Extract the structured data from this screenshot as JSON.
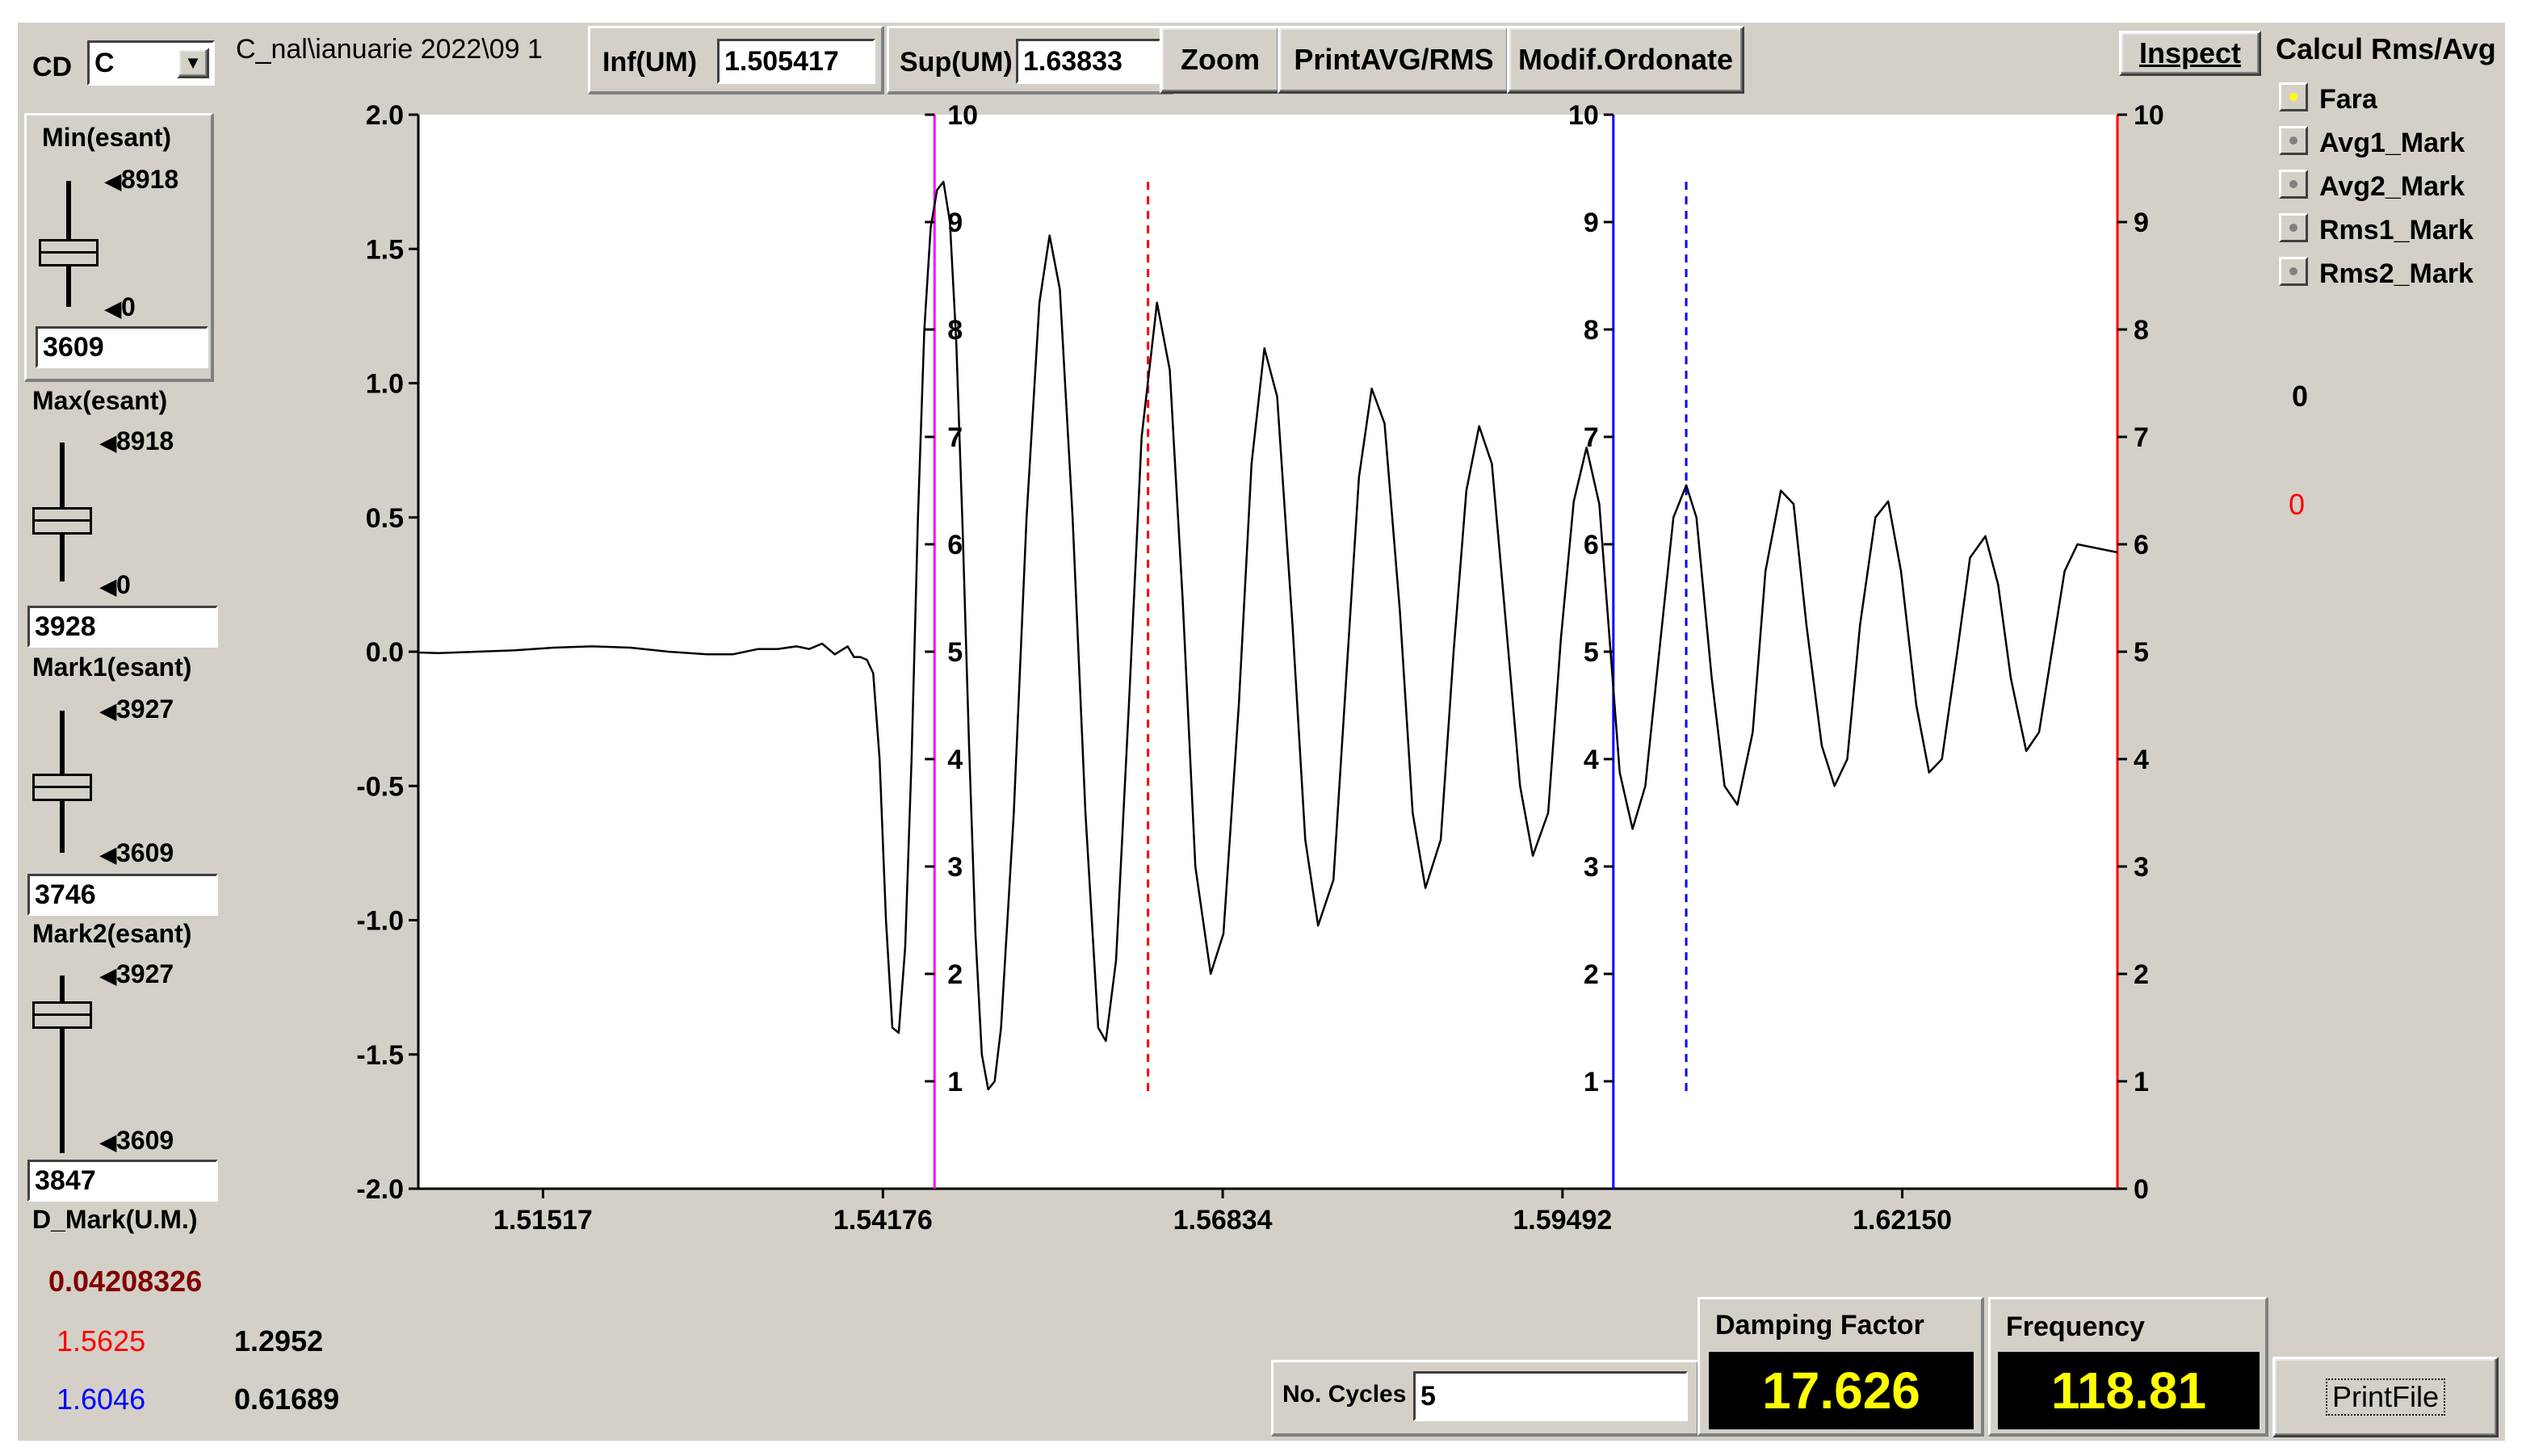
{
  "toolbar": {
    "cd_label": "CD",
    "cd_value": "C",
    "file_path": "C_nal\\ianuarie 2022\\09 1",
    "inf_label": "Inf(UM)",
    "inf_value": "1.505417",
    "sup_label": "Sup(UM)",
    "sup_value": "1.63833",
    "zoom_label": "Zoom",
    "print_avg_rms_label": "PrintAVG/RMS",
    "modif_ordonate_label": "Modif.Ordonate",
    "inspect_label": "Inspect"
  },
  "left_panel": {
    "min": {
      "label": "Min(esant)",
      "max_tick": "8918",
      "min_tick": "0",
      "value": "3609"
    },
    "max": {
      "label": "Max(esant)",
      "max_tick": "8918",
      "min_tick": "0",
      "value": "3928"
    },
    "mark1": {
      "label": "Mark1(esant)",
      "max_tick": "3927",
      "min_tick": "3609",
      "value": "3746"
    },
    "mark2": {
      "label": "Mark2(esant)",
      "max_tick": "3927",
      "min_tick": "3609",
      "value": "3847"
    },
    "d_mark_label": "D_Mark(U.M.)",
    "d_mark_value": "0.04208326",
    "mark1_x": "1.5625",
    "mark1_y": "1.2952",
    "mark2_x": "1.6046",
    "mark2_y": "0.61689"
  },
  "right_panel": {
    "title": "Calcul Rms/Avg",
    "options": [
      "Fara",
      "Avg1_Mark",
      "Avg2_Mark",
      "Rms1_Mark",
      "Rms2_Mark"
    ],
    "selected": "Fara",
    "value_black": "0",
    "value_red": "0"
  },
  "bottom": {
    "cycles_label": "No. Cycles",
    "cycles_value": "5",
    "damping_label": "Damping Factor",
    "damping_value": "17.626",
    "frequency_label": "Frequency",
    "frequency_value": "118.81",
    "printfile_label": "PrintFile"
  },
  "colors": {
    "window_bg": "#d4d0c8",
    "signal": "#000000",
    "cursor_magenta": "#ff00ff",
    "cursor_blue": "#0000ff",
    "marker_red": "#ff0000",
    "lcd_text": "#ffff00",
    "d_mark_text": "#800000"
  },
  "chart_data": {
    "type": "line",
    "title": "",
    "xlabel": "",
    "ylabel": "",
    "xlim": [
      1.505417,
      1.63833
    ],
    "ylim": [
      -2.0,
      2.0
    ],
    "x_ticks": [
      "1.51517",
      "1.54176",
      "1.56834",
      "1.59492",
      "1.62150"
    ],
    "x_tick_values": [
      1.51517,
      1.54176,
      1.56834,
      1.59492,
      1.6215
    ],
    "y_ticks": [
      "2.0",
      "1.5",
      "1.0",
      "0.5",
      "0.0",
      "-0.5",
      "-1.0",
      "-1.5",
      "-2.0"
    ],
    "y_tick_values": [
      2.0,
      1.5,
      1.0,
      0.5,
      0.0,
      -0.5,
      -1.0,
      -1.5,
      -2.0
    ],
    "secondary_axis_ticks": [
      "10",
      "9",
      "8",
      "7",
      "6",
      "5",
      "4",
      "3",
      "2",
      "1",
      "0"
    ],
    "cursor_magenta_x": 1.5458,
    "cursor_blue_x": 1.5989,
    "mark1_x": 1.5625,
    "mark2_x": 1.6046,
    "grid": false,
    "series": [
      {
        "points": [
          [
            1.505417,
            -0.003
          ],
          [
            1.507,
            -0.005
          ],
          [
            1.51,
            0.0
          ],
          [
            1.513,
            0.005
          ],
          [
            1.516,
            0.015
          ],
          [
            1.519,
            0.02
          ],
          [
            1.522,
            0.015
          ],
          [
            1.525,
            0.0
          ],
          [
            1.528,
            -0.01
          ],
          [
            1.53,
            -0.01
          ],
          [
            1.532,
            0.01
          ],
          [
            1.5335,
            0.01
          ],
          [
            1.535,
            0.02
          ],
          [
            1.536,
            0.01
          ],
          [
            1.537,
            0.03
          ],
          [
            1.538,
            -0.01
          ],
          [
            1.539,
            0.02
          ],
          [
            1.5395,
            -0.02
          ],
          [
            1.54,
            -0.02
          ],
          [
            1.5405,
            -0.03
          ],
          [
            1.541,
            -0.08
          ],
          [
            1.5415,
            -0.4
          ],
          [
            1.542,
            -1.0
          ],
          [
            1.5425,
            -1.4
          ],
          [
            1.543,
            -1.42
          ],
          [
            1.5435,
            -1.1
          ],
          [
            1.544,
            -0.4
          ],
          [
            1.5445,
            0.5
          ],
          [
            1.545,
            1.2
          ],
          [
            1.5455,
            1.58
          ],
          [
            1.546,
            1.72
          ],
          [
            1.5465,
            1.75
          ],
          [
            1.547,
            1.6
          ],
          [
            1.5475,
            1.15
          ],
          [
            1.548,
            0.45
          ],
          [
            1.5485,
            -0.35
          ],
          [
            1.549,
            -1.05
          ],
          [
            1.5495,
            -1.5
          ],
          [
            1.55,
            -1.63
          ],
          [
            1.5505,
            -1.6
          ],
          [
            1.551,
            -1.4
          ],
          [
            1.552,
            -0.6
          ],
          [
            1.553,
            0.5
          ],
          [
            1.554,
            1.3
          ],
          [
            1.5548,
            1.55
          ],
          [
            1.5556,
            1.35
          ],
          [
            1.5566,
            0.5
          ],
          [
            1.5576,
            -0.6
          ],
          [
            1.5586,
            -1.4
          ],
          [
            1.5592,
            -1.45
          ],
          [
            1.56,
            -1.15
          ],
          [
            1.561,
            -0.2
          ],
          [
            1.562,
            0.8
          ],
          [
            1.5632,
            1.3
          ],
          [
            1.5642,
            1.05
          ],
          [
            1.5652,
            0.2
          ],
          [
            1.5662,
            -0.8
          ],
          [
            1.5674,
            -1.2
          ],
          [
            1.5684,
            -1.05
          ],
          [
            1.5696,
            -0.2
          ],
          [
            1.5706,
            0.7
          ],
          [
            1.5716,
            1.13
          ],
          [
            1.5726,
            0.95
          ],
          [
            1.5738,
            0.1
          ],
          [
            1.5748,
            -0.7
          ],
          [
            1.5758,
            -1.02
          ],
          [
            1.577,
            -0.85
          ],
          [
            1.578,
            -0.1
          ],
          [
            1.579,
            0.65
          ],
          [
            1.58,
            0.98
          ],
          [
            1.581,
            0.85
          ],
          [
            1.5822,
            0.15
          ],
          [
            1.5832,
            -0.6
          ],
          [
            1.5842,
            -0.88
          ],
          [
            1.5854,
            -0.7
          ],
          [
            1.5864,
            0.0
          ],
          [
            1.5874,
            0.6
          ],
          [
            1.5884,
            0.84
          ],
          [
            1.5894,
            0.7
          ],
          [
            1.5906,
            0.05
          ],
          [
            1.5916,
            -0.5
          ],
          [
            1.5926,
            -0.76
          ],
          [
            1.5938,
            -0.6
          ],
          [
            1.5948,
            0.05
          ],
          [
            1.5958,
            0.56
          ],
          [
            1.5968,
            0.76
          ],
          [
            1.5978,
            0.55
          ],
          [
            1.5986,
            0.05
          ],
          [
            1.5994,
            -0.45
          ],
          [
            1.6004,
            -0.66
          ],
          [
            1.6014,
            -0.5
          ],
          [
            1.6026,
            0.05
          ],
          [
            1.6036,
            0.5
          ],
          [
            1.6046,
            0.62
          ],
          [
            1.6054,
            0.5
          ],
          [
            1.6066,
            -0.1
          ],
          [
            1.6076,
            -0.5
          ],
          [
            1.6086,
            -0.57
          ],
          [
            1.6098,
            -0.3
          ],
          [
            1.6108,
            0.3
          ],
          [
            1.612,
            0.6
          ],
          [
            1.613,
            0.55
          ],
          [
            1.614,
            0.1
          ],
          [
            1.6152,
            -0.35
          ],
          [
            1.6162,
            -0.5
          ],
          [
            1.6172,
            -0.4
          ],
          [
            1.6182,
            0.1
          ],
          [
            1.6194,
            0.5
          ],
          [
            1.6204,
            0.56
          ],
          [
            1.6214,
            0.3
          ],
          [
            1.6226,
            -0.2
          ],
          [
            1.6236,
            -0.45
          ],
          [
            1.6246,
            -0.4
          ],
          [
            1.6258,
            0.0
          ],
          [
            1.6268,
            0.35
          ],
          [
            1.628,
            0.43
          ],
          [
            1.629,
            0.25
          ],
          [
            1.63,
            -0.1
          ],
          [
            1.6312,
            -0.37
          ],
          [
            1.6322,
            -0.3
          ],
          [
            1.6332,
            0.0
          ],
          [
            1.6342,
            0.3
          ],
          [
            1.6352,
            0.4
          ],
          [
            1.63833,
            0.37
          ]
        ]
      }
    ]
  }
}
